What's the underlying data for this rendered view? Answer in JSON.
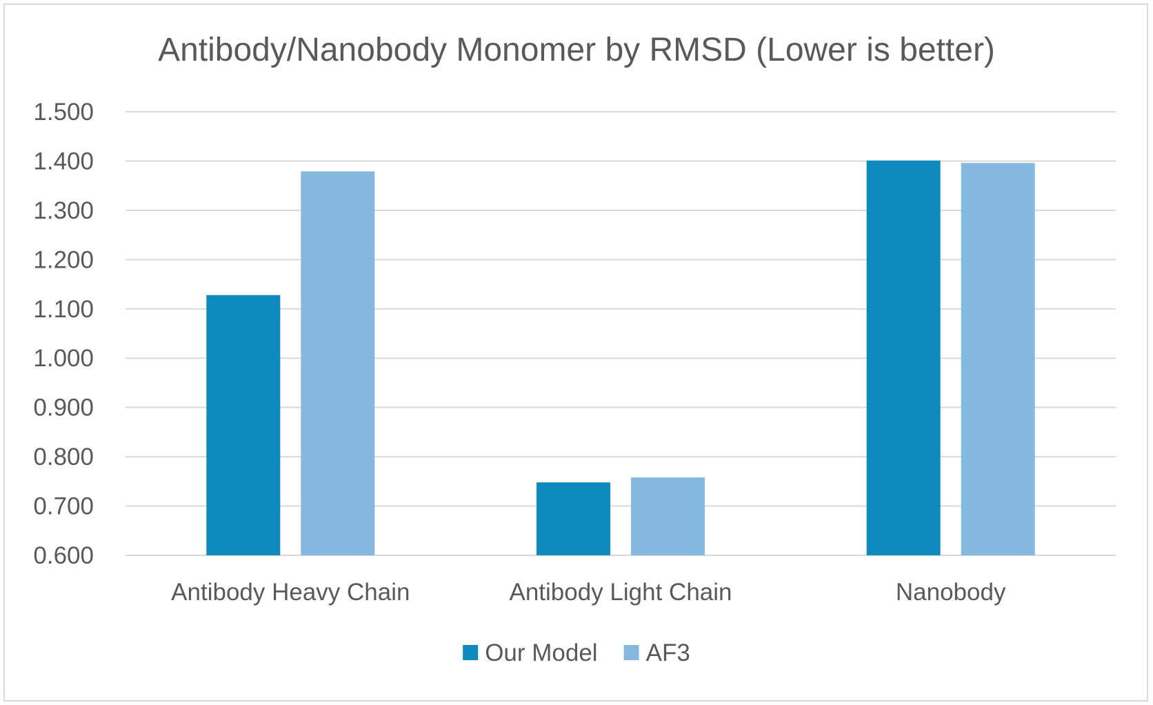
{
  "chart_data": {
    "type": "bar",
    "title": "Antibody/Nanobody Monomer by RMSD (Lower is better)",
    "xlabel": "",
    "ylabel": "",
    "categories": [
      "Antibody Heavy Chain",
      "Antibody Light Chain",
      "Nanobody"
    ],
    "series": [
      {
        "name": "Our Model",
        "color": "#0f8abf",
        "values": [
          1.128,
          0.748,
          1.401
        ]
      },
      {
        "name": "AF3",
        "color": "#86b9e0",
        "values": [
          1.379,
          0.758,
          1.396
        ]
      }
    ],
    "ylim": [
      0.6,
      1.5
    ],
    "yticks": [
      "0.600",
      "0.700",
      "0.800",
      "0.900",
      "1.000",
      "1.100",
      "1.200",
      "1.300",
      "1.400",
      "1.500"
    ],
    "grid": true,
    "legend_position": "bottom"
  }
}
